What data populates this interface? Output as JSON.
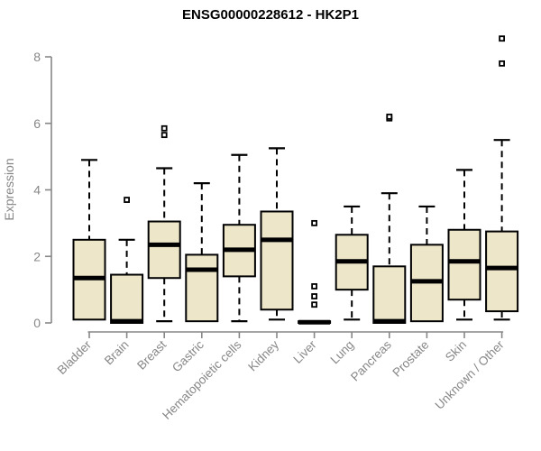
{
  "colors": {
    "box_fill": "#EDE6C8",
    "box_border": "#000000",
    "median": "#000000",
    "whisker": "#000000",
    "axis": "#878787",
    "tick_label": "#878787",
    "title": "#000000",
    "outlier_fill": "#ffffff",
    "outlier_border": "#000000"
  },
  "chart_data": {
    "type": "boxplot",
    "title": "ENSG00000228612 - HK2P1",
    "xlabel": "",
    "ylabel": "Expression",
    "ylim": [
      0,
      8.6
    ],
    "yticks": [
      0,
      2,
      4,
      6,
      8
    ],
    "grid": false,
    "legend": false,
    "categories": [
      "Bladder",
      "Brain",
      "Breast",
      "Gastric",
      "Hematopoietic cells",
      "Kidney",
      "Liver",
      "Lung",
      "Pancreas",
      "Prostate",
      "Skin",
      "Unknown / Other"
    ],
    "boxes": [
      {
        "category": "Bladder",
        "min": 0.1,
        "q1": 0.1,
        "median": 1.35,
        "q3": 2.5,
        "max": 4.9,
        "outliers": []
      },
      {
        "category": "Brain",
        "min": 0.0,
        "q1": 0.0,
        "median": 0.05,
        "q3": 1.45,
        "max": 2.5,
        "outliers": [
          3.7
        ]
      },
      {
        "category": "Breast",
        "min": 0.05,
        "q1": 1.35,
        "median": 2.35,
        "q3": 3.05,
        "max": 4.65,
        "outliers": [
          5.65,
          5.85
        ]
      },
      {
        "category": "Gastric",
        "min": 0.05,
        "q1": 0.05,
        "median": 1.6,
        "q3": 2.05,
        "max": 4.2,
        "outliers": []
      },
      {
        "category": "Hematopoietic cells",
        "min": 0.05,
        "q1": 1.4,
        "median": 2.2,
        "q3": 2.95,
        "max": 5.05,
        "outliers": []
      },
      {
        "category": "Kidney",
        "min": 0.1,
        "q1": 0.4,
        "median": 2.5,
        "q3": 3.35,
        "max": 5.25,
        "outliers": []
      },
      {
        "category": "Liver",
        "min": 0.0,
        "q1": 0.0,
        "median": 0.02,
        "q3": 0.05,
        "max": 0.05,
        "outliers": [
          0.55,
          0.8,
          1.1,
          3.0
        ]
      },
      {
        "category": "Lung",
        "min": 0.1,
        "q1": 1.0,
        "median": 1.85,
        "q3": 2.65,
        "max": 3.5,
        "outliers": []
      },
      {
        "category": "Pancreas",
        "min": 0.0,
        "q1": 0.0,
        "median": 0.05,
        "q3": 1.7,
        "max": 3.9,
        "outliers": [
          6.15,
          6.2
        ]
      },
      {
        "category": "Prostate",
        "min": 0.05,
        "q1": 0.05,
        "median": 1.25,
        "q3": 2.35,
        "max": 3.5,
        "outliers": []
      },
      {
        "category": "Skin",
        "min": 0.1,
        "q1": 0.7,
        "median": 1.85,
        "q3": 2.8,
        "max": 4.6,
        "outliers": []
      },
      {
        "category": "Unknown / Other",
        "min": 0.1,
        "q1": 0.35,
        "median": 1.65,
        "q3": 2.75,
        "max": 5.5,
        "outliers": [
          7.8,
          8.55
        ]
      }
    ]
  }
}
